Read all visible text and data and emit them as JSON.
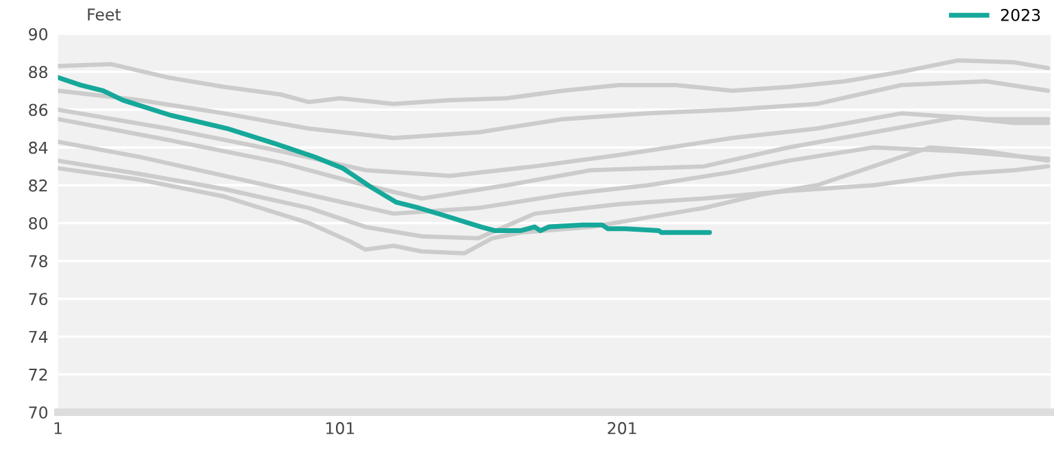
{
  "chart_data": {
    "type": "line",
    "ylabel": "Feet",
    "xlim": [
      1,
      353
    ],
    "xticks": [
      1,
      101,
      201
    ],
    "ylim": [
      70,
      90
    ],
    "yticks": [
      70,
      72,
      74,
      76,
      78,
      80,
      82,
      84,
      86,
      88,
      90
    ],
    "grid": "y",
    "legend": "top right",
    "marker": "none",
    "line_style": "solid",
    "series": [
      {
        "color": "#cccccc",
        "x": [
          1,
          20,
          40,
          60,
          80,
          90,
          101,
          120,
          140,
          160,
          180,
          200,
          220,
          240,
          260,
          280,
          300,
          320,
          340,
          352
        ],
        "values": [
          88.3,
          88.4,
          87.7,
          87.2,
          86.8,
          86.4,
          86.6,
          86.3,
          86.5,
          86.6,
          87.0,
          87.3,
          87.3,
          87.0,
          87.2,
          87.5,
          88.0,
          88.6,
          88.5,
          88.2
        ]
      },
      {
        "color": "#cccccc",
        "x": [
          1,
          30,
          60,
          90,
          120,
          150,
          180,
          210,
          240,
          270,
          300,
          330,
          352
        ],
        "values": [
          87.0,
          86.5,
          85.8,
          85.0,
          84.5,
          84.8,
          85.5,
          85.8,
          86.0,
          86.3,
          87.3,
          87.5,
          87.0
        ]
      },
      {
        "color": "#cccccc",
        "x": [
          1,
          40,
          80,
          110,
          140,
          170,
          200,
          240,
          270,
          300,
          330,
          352
        ],
        "values": [
          86.0,
          85.0,
          83.8,
          82.8,
          82.5,
          83.0,
          83.6,
          84.5,
          85.0,
          85.8,
          85.5,
          85.5
        ]
      },
      {
        "color": "#cccccc",
        "x": [
          1,
          40,
          80,
          110,
          130,
          160,
          190,
          230,
          260,
          290,
          320,
          340,
          352
        ],
        "values": [
          85.5,
          84.4,
          83.2,
          82.0,
          81.3,
          82.0,
          82.8,
          83.0,
          84.0,
          84.8,
          85.6,
          85.3,
          85.3
        ]
      },
      {
        "color": "#cccccc",
        "x": [
          1,
          30,
          60,
          90,
          120,
          150,
          180,
          210,
          240,
          260,
          290,
          320,
          352
        ],
        "values": [
          84.3,
          83.5,
          82.5,
          81.5,
          80.5,
          80.8,
          81.5,
          82.0,
          82.7,
          83.3,
          84.0,
          83.8,
          83.4
        ]
      },
      {
        "color": "#cccccc",
        "x": [
          1,
          30,
          60,
          90,
          110,
          130,
          150,
          170,
          200,
          230,
          260,
          290,
          320,
          340,
          352
        ],
        "values": [
          83.3,
          82.6,
          81.8,
          80.8,
          79.8,
          79.3,
          79.2,
          80.5,
          81.0,
          81.3,
          81.7,
          82.0,
          82.6,
          82.8,
          83.0
        ]
      },
      {
        "color": "#cccccc",
        "x": [
          1,
          30,
          60,
          90,
          105,
          110,
          120,
          130,
          145,
          155,
          165,
          190,
          210,
          230,
          250,
          270,
          290,
          310,
          330,
          352
        ],
        "values": [
          82.9,
          82.3,
          81.4,
          80.0,
          79.0,
          78.6,
          78.8,
          78.5,
          78.4,
          79.2,
          79.5,
          79.8,
          80.3,
          80.8,
          81.5,
          82.0,
          83.0,
          84.0,
          83.8,
          83.3
        ]
      },
      {
        "name": "2023",
        "color": "#16a89a",
        "x": [
          1,
          9,
          17,
          24,
          41,
          61,
          78,
          92,
          102,
          112,
          121,
          129,
          138,
          151,
          156,
          165,
          170,
          172,
          175,
          187,
          194,
          196,
          202,
          214,
          215,
          232
        ],
        "values": [
          87.7,
          87.3,
          87.0,
          86.5,
          85.7,
          85.0,
          84.2,
          83.5,
          82.9,
          81.9,
          81.1,
          80.8,
          80.4,
          79.8,
          79.6,
          79.6,
          79.8,
          79.6,
          79.8,
          79.9,
          79.9,
          79.7,
          79.7,
          79.6,
          79.5,
          79.5
        ]
      }
    ]
  }
}
